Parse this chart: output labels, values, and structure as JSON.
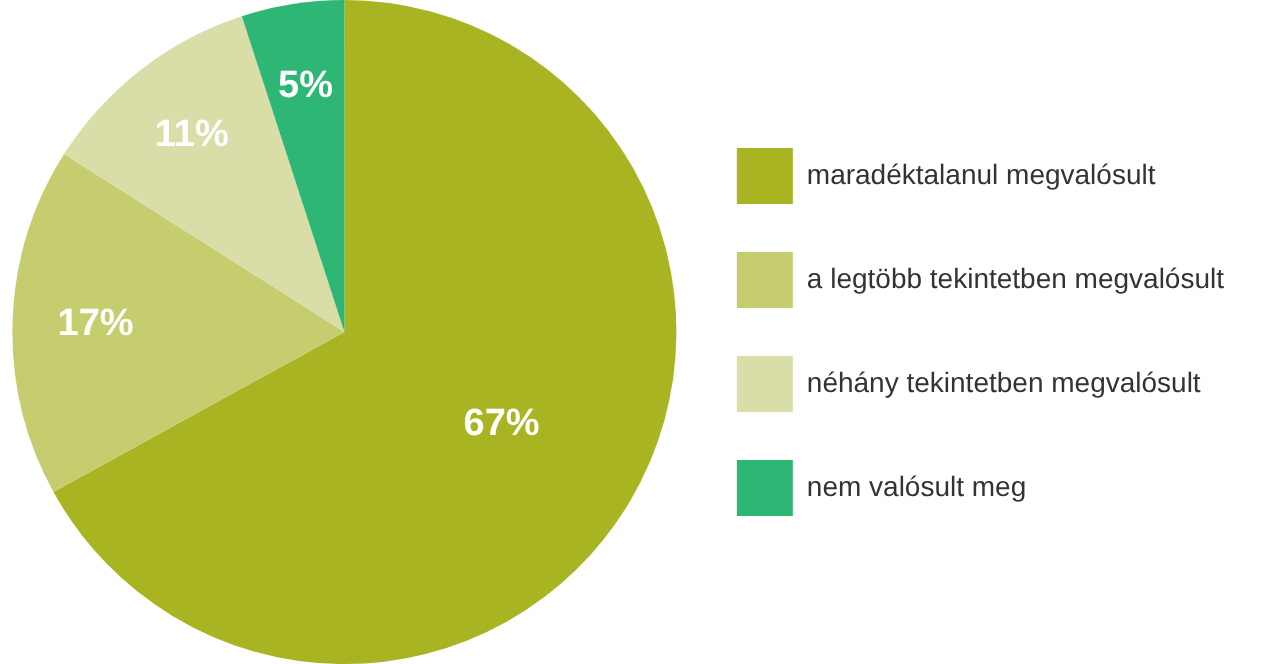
{
  "chart_data": {
    "type": "pie",
    "categories": [
      "maradéktalanul megvalósult",
      "a legtöbb tekintetben megvalósult",
      "néhány tekintetben megvalósult",
      "nem valósult meg"
    ],
    "values": [
      67,
      17,
      11,
      5
    ],
    "colors": [
      "#a9b422",
      "#c6cd6f",
      "#d9dda8",
      "#2db674"
    ],
    "value_labels": [
      "67%",
      "17%",
      "11%",
      "5%"
    ],
    "legend": "right"
  }
}
